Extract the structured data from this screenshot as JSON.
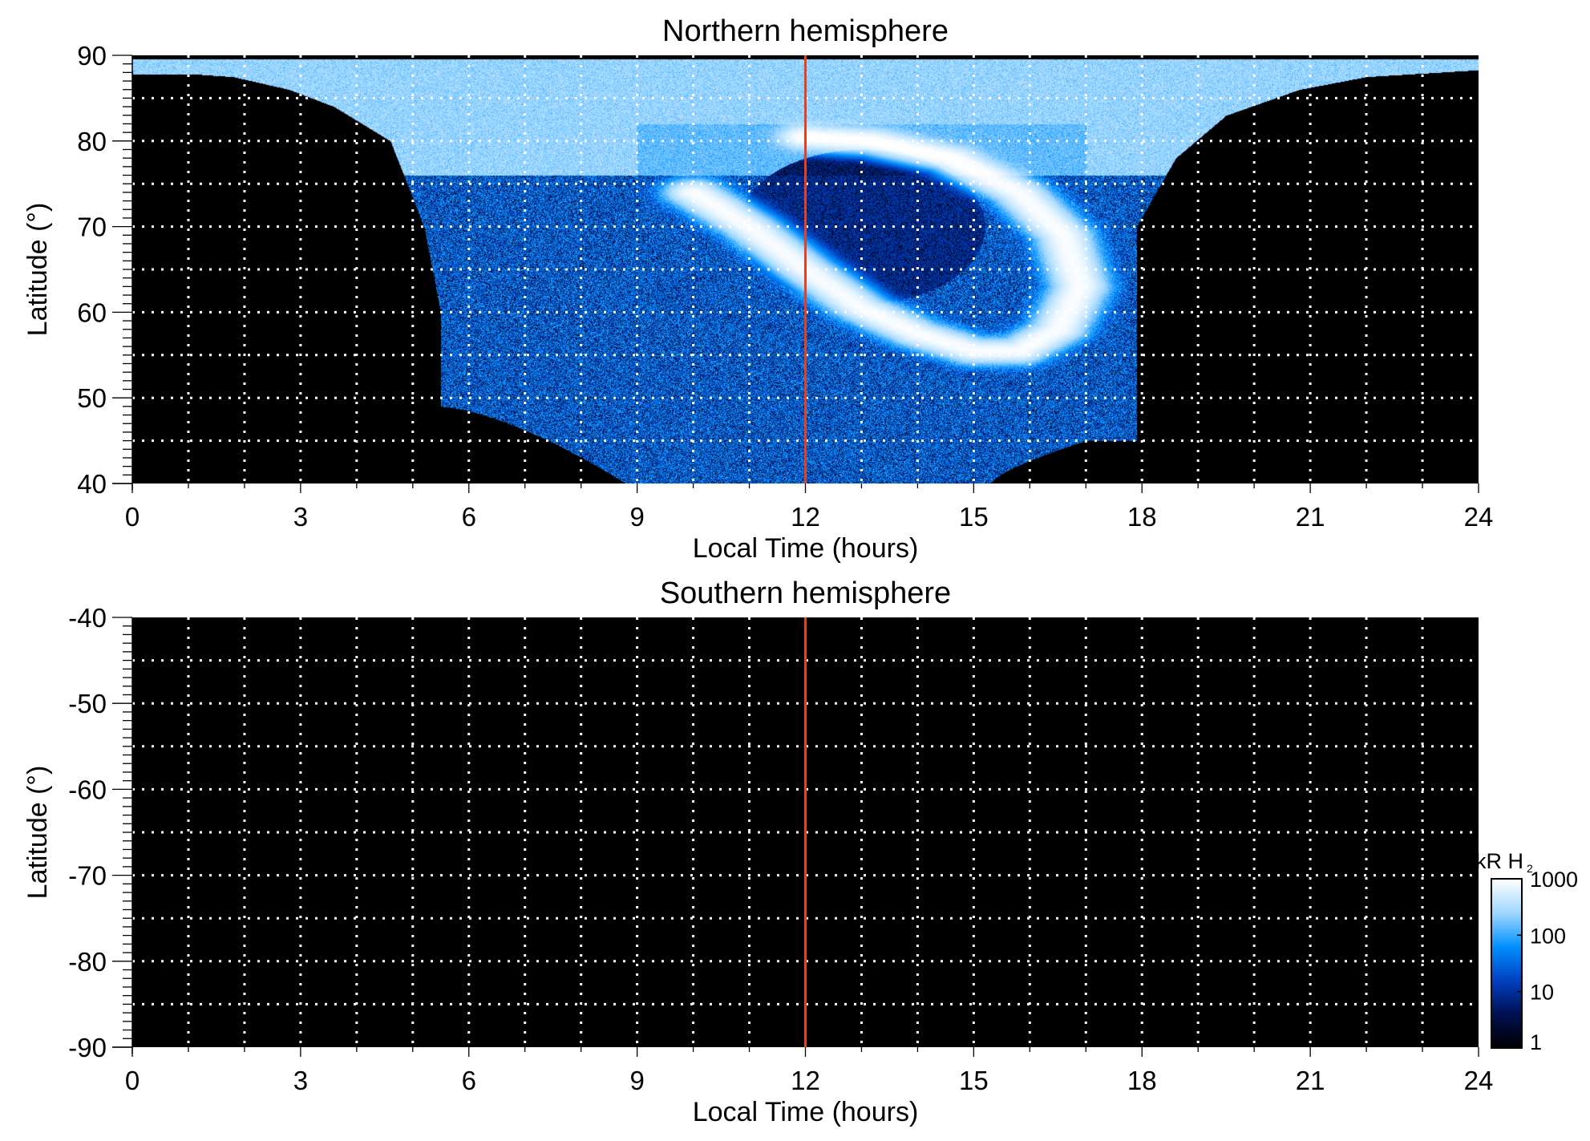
{
  "chart_data": [
    {
      "type": "heatmap",
      "title": "Northern hemisphere",
      "xlabel": "Local Time (hours)",
      "ylabel": "Latitude (°)",
      "xlim": [
        0,
        24
      ],
      "ylim": [
        40,
        90
      ],
      "xticks": [
        "0",
        "3",
        "6",
        "9",
        "12",
        "15",
        "18",
        "21",
        "24"
      ],
      "yticks": [
        "40",
        "50",
        "60",
        "70",
        "80",
        "90"
      ],
      "grid": true,
      "marker_line": {
        "x": 12,
        "color": "#e8401c"
      },
      "has_data": true
    },
    {
      "type": "heatmap",
      "title": "Southern hemisphere",
      "xlabel": "Local Time (hours)",
      "ylabel": "Latitude (°)",
      "xlim": [
        0,
        24
      ],
      "ylim": [
        -90,
        -40
      ],
      "xticks": [
        "0",
        "3",
        "6",
        "9",
        "12",
        "15",
        "18",
        "21",
        "24"
      ],
      "yticks": [
        "-90",
        "-80",
        "-70",
        "-60",
        "-50",
        "-40"
      ],
      "grid": true,
      "marker_line": {
        "x": 12,
        "color": "#e8401c"
      },
      "has_data": false
    }
  ],
  "colorbar": {
    "label": "kR H",
    "label_subscript": "2",
    "scale": "log",
    "range": [
      1,
      1000
    ],
    "ticks": [
      "1",
      "10",
      "100",
      "1000"
    ],
    "colors": [
      "#000000",
      "#001050",
      "#0040c0",
      "#0090ff",
      "#a0d8ff",
      "#ffffff"
    ]
  }
}
